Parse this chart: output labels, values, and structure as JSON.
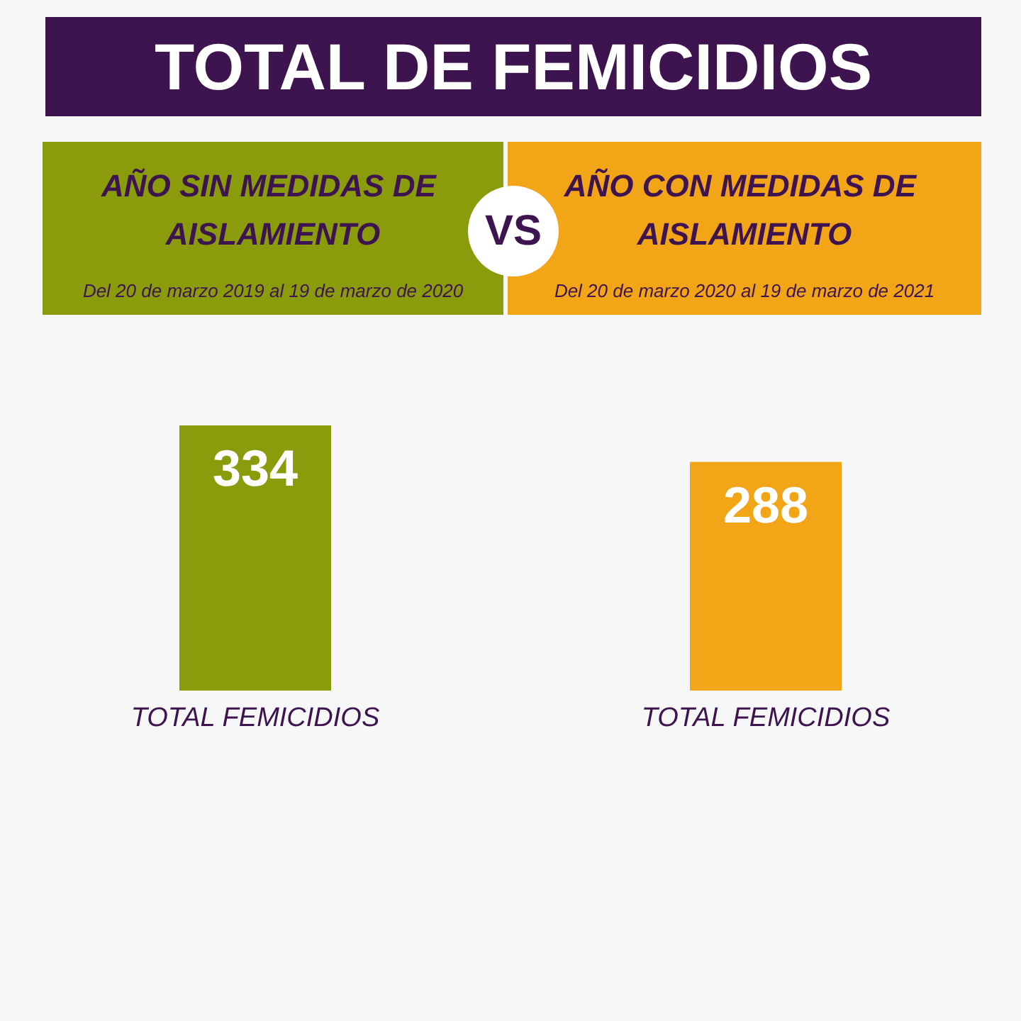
{
  "chart_data": {
    "type": "bar",
    "title": "TOTAL DE FEMICIDIOS",
    "categories": [
      "TOTAL FEMICIDIOS",
      "TOTAL FEMICIDIOS"
    ],
    "values": [
      334,
      288
    ],
    "colors": [
      "#8a9c0c",
      "#f2a516"
    ],
    "data_labels": true,
    "tick_labels": "x",
    "annotations": [
      "AÑO SIN MEDIDAS DE AISLAMIENTO",
      "Del 20 de marzo 2019 al 19 de marzo de 2020",
      "VS",
      "AÑO CON MEDIDAS DE AISLAMIENTO",
      "Del 20 de marzo 2020 al 19 de marzo de 2021"
    ]
  }
}
